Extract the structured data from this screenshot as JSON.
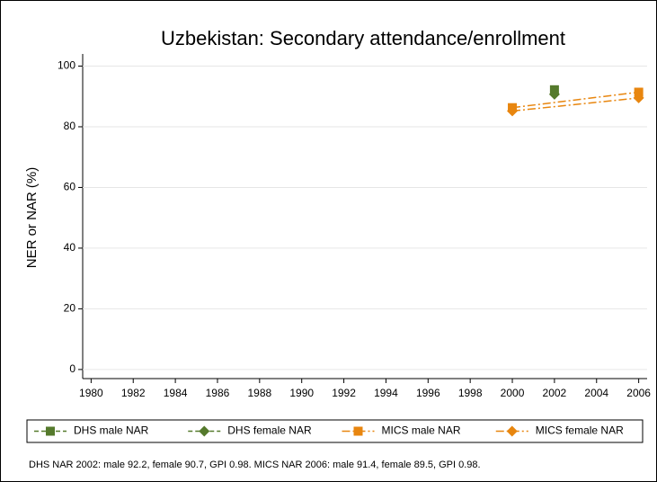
{
  "chart_data": {
    "type": "line",
    "title": "Uzbekistan: Secondary attendance/enrollment",
    "ylabel": "NER or NAR (%)",
    "note": "DHS NAR 2002: male 92.2, female 90.7, GPI 0.98. MICS NAR 2006: male 91.4, female 89.5, GPI 0.98.",
    "xlim": [
      1979.6,
      2006.4
    ],
    "xticks": [
      1980,
      1982,
      1984,
      1986,
      1988,
      1990,
      1992,
      1994,
      1996,
      1998,
      2000,
      2002,
      2004,
      2006
    ],
    "ylim": [
      -3,
      104
    ],
    "yticks": [
      0,
      20,
      40,
      60,
      80,
      100
    ],
    "grid": true,
    "legend": "bottom",
    "series": [
      {
        "name": "DHS male NAR",
        "color": "#557a2c",
        "marker": "square",
        "line_style": "dash",
        "x": [
          2002
        ],
        "values": [
          92.2
        ]
      },
      {
        "name": "DHS female NAR",
        "color": "#557a2c",
        "marker": "diamond",
        "line_style": "dash",
        "x": [
          2002
        ],
        "values": [
          90.7
        ]
      },
      {
        "name": "MICS male NAR",
        "color": "#e8860f",
        "marker": "square",
        "line_style": "dash-dot",
        "x": [
          2000,
          2006
        ],
        "values": [
          86.3,
          91.4
        ]
      },
      {
        "name": "MICS female NAR",
        "color": "#e8860f",
        "marker": "diamond",
        "line_style": "dash-dot",
        "x": [
          2000,
          2006
        ],
        "values": [
          85.2,
          89.5
        ]
      }
    ]
  }
}
